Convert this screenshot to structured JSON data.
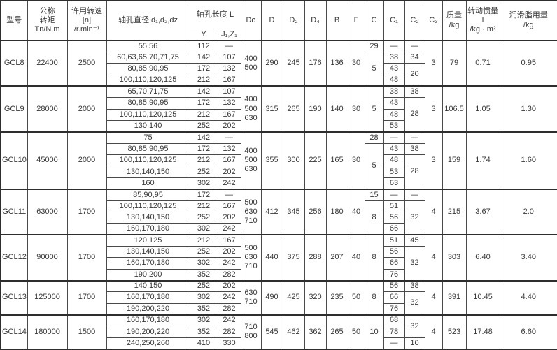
{
  "table": {
    "header": {
      "model": "型号",
      "torque": "公称\n转矩\nTn/N.m",
      "speed": "许用转速\n[n]\n/r.min⁻¹",
      "bore_dia": "轴孔直径 d₁,d₂,dz",
      "bore_len": "轴孔长度 L",
      "y": "Y",
      "jz": "J₁,Z₁",
      "Do": "Do",
      "D": "D",
      "D2": "D₂",
      "D4": "D₄",
      "B": "B",
      "F": "F",
      "C": "C",
      "C1": "C₁",
      "C2": "C₂",
      "C3": "C₃",
      "mass": "质量\n/kg",
      "inertia": "转动惯量 I\n/kg · m²",
      "grease": "润滑脂用量\n/kg"
    },
    "groups": [
      {
        "model": "GCL8",
        "torque": "22400",
        "speed": "2500",
        "rows": [
          {
            "bores": "55,56",
            "y": "112",
            "jz": "—"
          },
          {
            "bores": "60,63,65,70,71,75",
            "y": "142",
            "jz": "107"
          },
          {
            "bores": "80,85,90,95",
            "y": "172",
            "jz": "132"
          },
          {
            "bores": "100,110,120,125",
            "y": "212",
            "jz": "167"
          }
        ],
        "Do": "400\n500",
        "D": "290",
        "D2": "245",
        "D4": "176",
        "B": "136",
        "F": "30",
        "c": [
          {
            "v": "29",
            "span": 1
          },
          {
            "v": "5",
            "span": 3
          }
        ],
        "c1": [
          "—",
          "38",
          "43",
          "48"
        ],
        "c2": [
          {
            "v": "—",
            "span": 1
          },
          {
            "v": "34",
            "span": 1
          },
          {
            "v": "20",
            "span": 2
          }
        ],
        "C3": "3",
        "mass": "79",
        "inertia": "0.71",
        "grease": "0.95"
      },
      {
        "model": "GCL9",
        "torque": "28000",
        "speed": "2000",
        "rows": [
          {
            "bores": "65,70,71,75",
            "y": "142",
            "jz": "107"
          },
          {
            "bores": "80,85,90,95",
            "y": "172",
            "jz": "132"
          },
          {
            "bores": "100,110,120,125",
            "y": "212",
            "jz": "167"
          },
          {
            "bores": "130,140",
            "y": "252",
            "jz": "202"
          }
        ],
        "Do": "400\n500\n630",
        "D": "315",
        "D2": "265",
        "D4": "190",
        "B": "140",
        "F": "30",
        "c": [
          {
            "v": "5",
            "span": 4
          }
        ],
        "c1": [
          "38",
          "43",
          "48",
          "53"
        ],
        "c2": [
          {
            "v": "38",
            "span": 1
          },
          {
            "v": "28",
            "span": 3
          }
        ],
        "C3": "3",
        "mass": "106.5",
        "inertia": "1.05",
        "grease": "1.30"
      },
      {
        "model": "GCL10",
        "torque": "45000",
        "speed": "2000",
        "rows": [
          {
            "bores": "75",
            "y": "142",
            "jz": "—"
          },
          {
            "bores": "80,85,90,95",
            "y": "172",
            "jz": "132"
          },
          {
            "bores": "100,110,120,125",
            "y": "212",
            "jz": "167"
          },
          {
            "bores": "130,140,150",
            "y": "252",
            "jz": "202"
          },
          {
            "bores": "160",
            "y": "302",
            "jz": "242"
          }
        ],
        "Do": "400\n500\n630",
        "D": "355",
        "D2": "300",
        "D4": "225",
        "B": "165",
        "F": "30",
        "c": [
          {
            "v": "28",
            "span": 1
          },
          {
            "v": "5",
            "span": 4
          }
        ],
        "c1": [
          "—",
          "43",
          "48",
          "53",
          "63"
        ],
        "c2": [
          {
            "v": "—",
            "span": 1
          },
          {
            "v": "38",
            "span": 1
          },
          {
            "v": "28",
            "span": 3
          }
        ],
        "C3": "3",
        "mass": "159",
        "inertia": "1.74",
        "grease": "1.60"
      },
      {
        "model": "GCL11",
        "torque": "63000",
        "speed": "1700",
        "rows": [
          {
            "bores": "85,90,95",
            "y": "172",
            "jz": "—"
          },
          {
            "bores": "100,110,120,125",
            "y": "212",
            "jz": "167"
          },
          {
            "bores": "130,140,150",
            "y": "252",
            "jz": "202"
          },
          {
            "bores": "160,170,180",
            "y": "302",
            "jz": "242"
          }
        ],
        "Do": "500\n630\n710",
        "D": "412",
        "D2": "345",
        "D4": "256",
        "B": "180",
        "F": "40",
        "c": [
          {
            "v": "15",
            "span": 1
          },
          {
            "v": "8",
            "span": 3
          }
        ],
        "c1": [
          "—",
          "51",
          "56",
          "66"
        ],
        "c2": [
          {
            "v": "—",
            "span": 1
          },
          {
            "v": "32",
            "span": 3
          }
        ],
        "C3": "4",
        "mass": "215",
        "inertia": "3.67",
        "grease": "2.0"
      },
      {
        "model": "GCL12",
        "torque": "90000",
        "speed": "1700",
        "rows": [
          {
            "bores": "120,125",
            "y": "212",
            "jz": "167"
          },
          {
            "bores": "130,140,150",
            "y": "252",
            "jz": "202"
          },
          {
            "bores": "160,170,180",
            "y": "302",
            "jz": "242"
          },
          {
            "bores": "190,200",
            "y": "352",
            "jz": "282"
          }
        ],
        "Do": "500\n630\n710",
        "D": "440",
        "D2": "375",
        "D4": "288",
        "B": "207",
        "F": "40",
        "c": [
          {
            "v": "8",
            "span": 4
          }
        ],
        "c1": [
          "51",
          "56",
          "66",
          "76"
        ],
        "c2": [
          {
            "v": "45",
            "span": 1
          },
          {
            "v": "32",
            "span": 3
          }
        ],
        "C3": "4",
        "mass": "303",
        "inertia": "6.40",
        "grease": "3.40"
      },
      {
        "model": "GCL13",
        "torque": "125000",
        "speed": "1700",
        "rows": [
          {
            "bores": "140,150",
            "y": "252",
            "jz": "202"
          },
          {
            "bores": "160,170,180",
            "y": "302",
            "jz": "242"
          },
          {
            "bores": "190,200,220",
            "y": "352",
            "jz": "282"
          }
        ],
        "Do": "630\n710",
        "D": "490",
        "D2": "425",
        "D4": "320",
        "B": "235",
        "F": "50",
        "c": [
          {
            "v": "8",
            "span": 3
          }
        ],
        "c1": [
          "56",
          "66",
          "76"
        ],
        "c2": [
          {
            "v": "38",
            "span": 1
          },
          {
            "v": "32",
            "span": 2
          }
        ],
        "C3": "4",
        "mass": "391",
        "inertia": "10.45",
        "grease": "4.40"
      },
      {
        "model": "GCL14",
        "torque": "180000",
        "speed": "1500",
        "rows": [
          {
            "bores": "160,170,180",
            "y": "302",
            "jz": "242"
          },
          {
            "bores": "190,200,220",
            "y": "352",
            "jz": "282"
          },
          {
            "bores": "240,250,260",
            "y": "410",
            "jz": "330"
          }
        ],
        "Do": "710\n800",
        "D": "545",
        "D2": "462",
        "D4": "362",
        "B": "265",
        "F": "50",
        "c": [
          {
            "v": "10",
            "span": 3
          }
        ],
        "c1": [
          "68",
          "78",
          "—"
        ],
        "c2": [
          {
            "v": "32",
            "span": 2
          },
          {
            "v": "10",
            "span": 1
          }
        ],
        "C3": "4",
        "mass": "523",
        "inertia": "17.48",
        "grease": "6.60"
      }
    ]
  }
}
